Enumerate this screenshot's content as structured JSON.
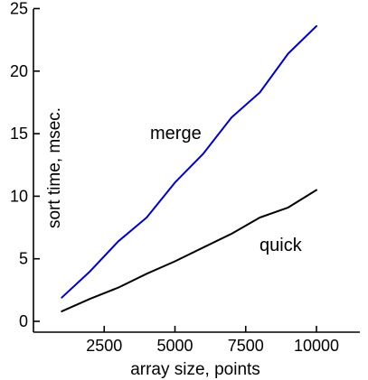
{
  "chart_data": {
    "type": "line",
    "title": "",
    "xlabel": "array size, points",
    "ylabel": "sort time, msec.",
    "xlim": [
      0,
      10800
    ],
    "ylim": [
      0,
      25
    ],
    "xticks": [
      2500,
      5000,
      7500,
      10000
    ],
    "yticks": [
      0,
      5,
      10,
      15,
      20,
      25
    ],
    "xtick_labels": [
      "2500",
      "5000",
      "7500",
      "10000"
    ],
    "ytick_labels": [
      "0",
      "5",
      "10",
      "15",
      "20",
      "25"
    ],
    "grid": false,
    "legend": "none (series labelled directly on the plot)",
    "series": [
      {
        "name": "merge",
        "color": "#0000cc",
        "x": [
          1000,
          2000,
          3000,
          4000,
          5000,
          6000,
          7000,
          8000,
          9000,
          10000
        ],
        "y": [
          1.9,
          4.0,
          6.4,
          8.3,
          11.1,
          13.4,
          16.3,
          18.3,
          21.4,
          23.6
        ]
      },
      {
        "name": "quick",
        "color": "#000000",
        "x": [
          1000,
          2000,
          3000,
          4000,
          5000,
          6000,
          7000,
          8000,
          9000,
          10000
        ],
        "y": [
          0.8,
          1.8,
          2.7,
          3.8,
          4.8,
          5.9,
          7.0,
          8.3,
          9.1,
          10.5
        ]
      }
    ]
  }
}
